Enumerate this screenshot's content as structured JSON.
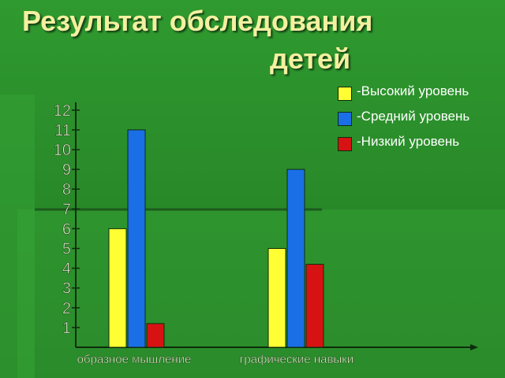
{
  "slide": {
    "title_line1": "Результат обследования",
    "title_line2": "детей",
    "colors": {
      "background": "#2a8a2a",
      "axis": "#0c2d0c",
      "title": "#f3f0a0"
    }
  },
  "legend": [
    {
      "label": "-Высокий уровень",
      "color": "#ffff33"
    },
    {
      "label": "-Средний уровень",
      "color": "#1a6fe6"
    },
    {
      "label": "-Низкий уровень",
      "color": "#d71212"
    }
  ],
  "chart_data": {
    "type": "bar",
    "categories": [
      "образное мышление",
      "графические навыки"
    ],
    "series": [
      {
        "name": "Высокий уровень",
        "color": "#ffff33",
        "values": [
          6,
          5
        ]
      },
      {
        "name": "Средний уровень",
        "color": "#1a6fe6",
        "values": [
          11,
          9
        ]
      },
      {
        "name": "Низкий уровень",
        "color": "#d71212",
        "values": [
          1.2,
          4.2
        ]
      }
    ],
    "yticks": [
      1,
      2,
      3,
      4,
      5,
      6,
      7,
      8,
      9,
      10,
      11,
      12
    ],
    "ylim": [
      0,
      12
    ],
    "legend_position": "top-right",
    "grid": false
  }
}
